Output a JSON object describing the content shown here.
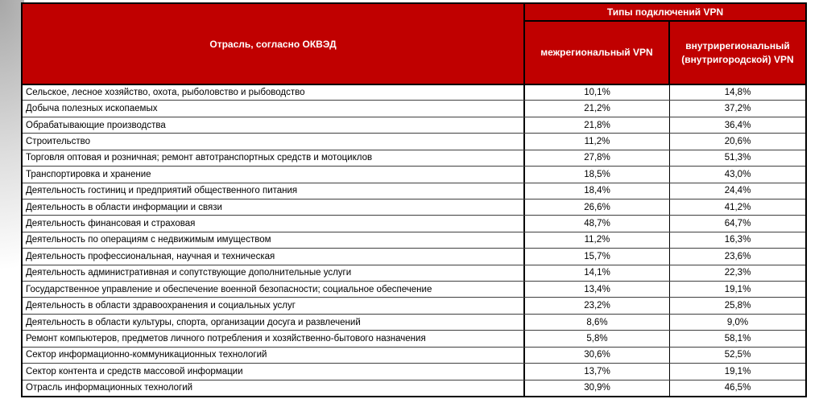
{
  "table": {
    "industry_header": "Отрасль, согласно ОКВЭД",
    "group_header": "Типы подключений VPN",
    "columns": {
      "interregional": "межрегиональный VPN",
      "intraregional": "внутрирегиональный (внутригородской) VPN"
    },
    "rows": [
      {
        "industry": "Сельское, лесное хозяйство, охота, рыболовство и рыбоводство",
        "interregional": "10,1%",
        "intraregional": "14,8%"
      },
      {
        "industry": "Добыча полезных ископаемых",
        "interregional": "21,2%",
        "intraregional": "37,2%"
      },
      {
        "industry": "Обрабатывающие производства",
        "interregional": "21,8%",
        "intraregional": "36,4%"
      },
      {
        "industry": "Строительство",
        "interregional": "11,2%",
        "intraregional": "20,6%"
      },
      {
        "industry": "Торговля оптовая и розничная; ремонт автотранспортных средств и мотоциклов",
        "interregional": "27,8%",
        "intraregional": "51,3%"
      },
      {
        "industry": "Транспортировка и хранение",
        "interregional": "18,5%",
        "intraregional": "43,0%"
      },
      {
        "industry": "Деятельность гостиниц и предприятий общественного питания",
        "interregional": "18,4%",
        "intraregional": "24,4%"
      },
      {
        "industry": "Деятельность в области информации и связи",
        "interregional": "26,6%",
        "intraregional": "41,2%"
      },
      {
        "industry": "Деятельность финансовая и страховая",
        "interregional": "48,7%",
        "intraregional": "64,7%"
      },
      {
        "industry": "Деятельность по операциям с недвижимым имуществом",
        "interregional": "11,2%",
        "intraregional": "16,3%"
      },
      {
        "industry": "Деятельность профессиональная, научная и техническая",
        "interregional": "15,7%",
        "intraregional": "23,6%"
      },
      {
        "industry": "Деятельность административная и сопутствующие дополнительные услуги",
        "interregional": "14,1%",
        "intraregional": "22,3%"
      },
      {
        "industry": "Государственное управление и обеспечение военной безопасности; социальное обеспечение",
        "interregional": "13,4%",
        "intraregional": "19,1%"
      },
      {
        "industry": "Деятельность в области здравоохранения и социальных услуг",
        "interregional": "23,2%",
        "intraregional": "25,8%"
      },
      {
        "industry": "Деятельность в области культуры, спорта, организации досуга и развлечений",
        "interregional": "8,6%",
        "intraregional": "9,0%"
      },
      {
        "industry": "Ремонт компьютеров, предметов личного потребления и хозяйственно-бытового назначения",
        "interregional": "5,8%",
        "intraregional": "58,1%"
      },
      {
        "industry": "Сектор информационно-коммуникационных технологий",
        "interregional": "30,6%",
        "intraregional": "52,5%"
      },
      {
        "industry": "Сектор контента и средств массовой информации",
        "interregional": "13,7%",
        "intraregional": "19,1%"
      },
      {
        "industry": "Отрасль информационных технологий",
        "interregional": "30,9%",
        "intraregional": "46,5%"
      }
    ]
  },
  "colors": {
    "header_background": "#C00000",
    "header_text": "#FFFFFF",
    "body_text": "#000000",
    "grid_line": "#3F3F3F",
    "outer_border": "#000000"
  }
}
